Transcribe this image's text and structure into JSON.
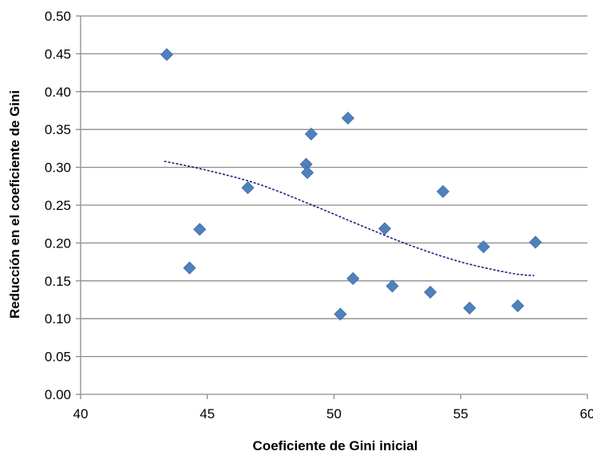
{
  "chart_data": {
    "type": "scatter",
    "title": "",
    "xlabel": "Coeficiente  de Gini inicial",
    "ylabel": "Reducción en el coeficiente de Gini",
    "xlim": [
      40,
      60
    ],
    "ylim": [
      0,
      0.5
    ],
    "x_ticks": [
      40,
      45,
      50,
      55,
      60
    ],
    "y_ticks": [
      0.0,
      0.05,
      0.1,
      0.15,
      0.2,
      0.25,
      0.3,
      0.35,
      0.4,
      0.45,
      0.5
    ],
    "x_tick_labels": [
      "40",
      "45",
      "50",
      "55",
      "60"
    ],
    "y_tick_labels": [
      "0.00",
      "0.05",
      "0.10",
      "0.15",
      "0.20",
      "0.25",
      "0.30",
      "0.35",
      "0.40",
      "0.45",
      "0.50"
    ],
    "grid": "horizontal",
    "marker": "diamond",
    "marker_color": "#4f81bd",
    "trendline_color": "#1f1f7a",
    "trendline_style": "dashed",
    "series": [
      {
        "points": [
          {
            "x": 43.4,
            "y": 0.449
          },
          {
            "x": 44.3,
            "y": 0.167
          },
          {
            "x": 44.7,
            "y": 0.218
          },
          {
            "x": 46.6,
            "y": 0.273
          },
          {
            "x": 48.9,
            "y": 0.304
          },
          {
            "x": 48.95,
            "y": 0.293
          },
          {
            "x": 49.1,
            "y": 0.344
          },
          {
            "x": 50.25,
            "y": 0.106
          },
          {
            "x": 50.55,
            "y": 0.365
          },
          {
            "x": 50.75,
            "y": 0.153
          },
          {
            "x": 52.0,
            "y": 0.219
          },
          {
            "x": 52.3,
            "y": 0.143
          },
          {
            "x": 53.8,
            "y": 0.135
          },
          {
            "x": 54.3,
            "y": 0.268
          },
          {
            "x": 55.35,
            "y": 0.114
          },
          {
            "x": 55.9,
            "y": 0.195
          },
          {
            "x": 57.25,
            "y": 0.117
          },
          {
            "x": 57.95,
            "y": 0.201
          }
        ]
      }
    ],
    "trendline": [
      {
        "x": 43.3,
        "y": 0.308
      },
      {
        "x": 45.0,
        "y": 0.296
      },
      {
        "x": 47.0,
        "y": 0.278
      },
      {
        "x": 49.0,
        "y": 0.252
      },
      {
        "x": 51.0,
        "y": 0.224
      },
      {
        "x": 53.0,
        "y": 0.197
      },
      {
        "x": 55.0,
        "y": 0.175
      },
      {
        "x": 57.0,
        "y": 0.16
      },
      {
        "x": 57.9,
        "y": 0.157
      }
    ]
  }
}
